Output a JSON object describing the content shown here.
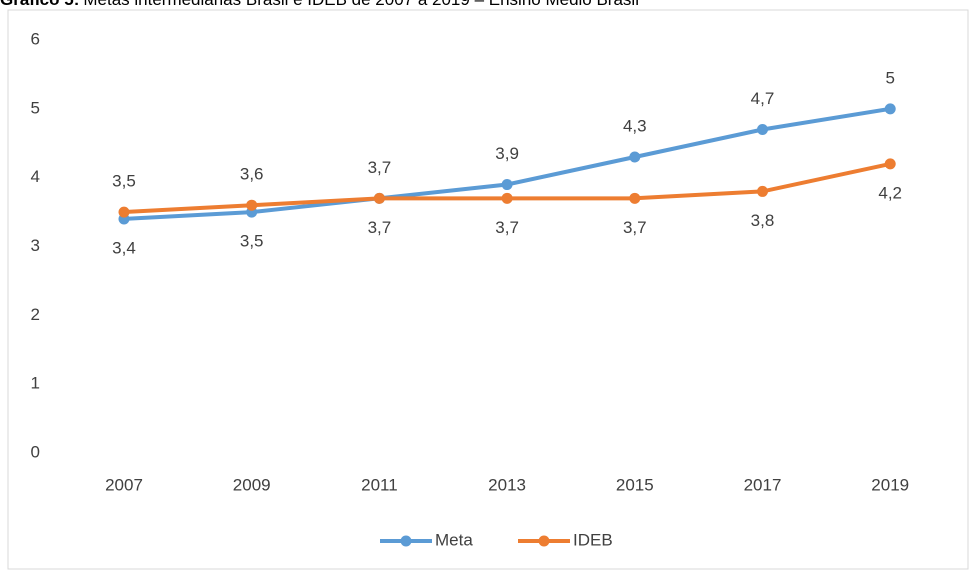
{
  "chart_data": {
    "type": "line",
    "title_number": "Gráfico 5:",
    "title": "Metas intermediárias Brasil e IDEB de 2007 a 2019 – Ensino Médio Brasil",
    "categories": [
      "2007",
      "2009",
      "2011",
      "2013",
      "2015",
      "2017",
      "2019"
    ],
    "series": [
      {
        "name": "Meta",
        "color": "#5b9bd5",
        "values": [
          3.4,
          3.5,
          3.7,
          3.9,
          4.3,
          4.7,
          5
        ],
        "value_labels": [
          "3,4",
          "3,5",
          "3,7",
          "3,9",
          "4,3",
          "4,7",
          "5"
        ]
      },
      {
        "name": "IDEB",
        "color": "#ed7d31",
        "values": [
          3.5,
          3.6,
          3.7,
          3.7,
          3.7,
          3.8,
          4.2
        ],
        "value_labels": [
          "3,5",
          "3,6",
          "3,7",
          "3,7",
          "3,7",
          "3,8",
          "4,2"
        ]
      }
    ],
    "ylim": [
      0,
      6
    ],
    "yticks": [
      0,
      1,
      2,
      3,
      4,
      5,
      6
    ],
    "grid": false,
    "legend": "bottom"
  }
}
